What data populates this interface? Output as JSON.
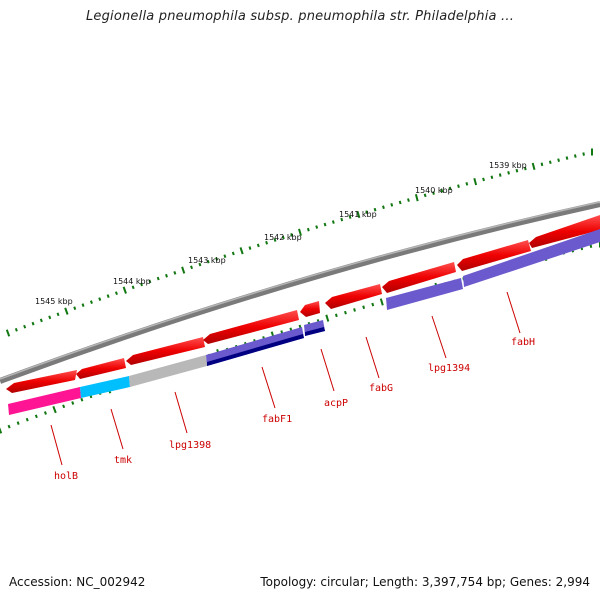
{
  "title": "Legionella pneumophila subsp. pneumophila str. Philadelphia ...",
  "accession": "Accession: NC_002942",
  "topology": "Topology: circular; Length: 3,397,754 bp; Genes: 2,994",
  "scale_labels": [
    "1539 kbp",
    "1540 kbp",
    "1541 kbp",
    "1542 kbp",
    "1543 kbp",
    "1544 kbp",
    "1545 kbp"
  ],
  "gene_labels": [
    "fabH",
    "lpg1394",
    "fabG",
    "acpP",
    "fabF1",
    "lpg1398",
    "tmk",
    "holB"
  ],
  "colors": {
    "background": "#ffffff",
    "backbone": "#808080",
    "gene": "#ee0000",
    "label": "#cc0000",
    "tick": "#117711",
    "cog_lipid_metabolism": "#6a5acd",
    "cog_dark": "#000080",
    "cog_cyan": "#00bfff",
    "cog_gray": "#b0b0b0",
    "cog_pink": "#ff1493"
  }
}
